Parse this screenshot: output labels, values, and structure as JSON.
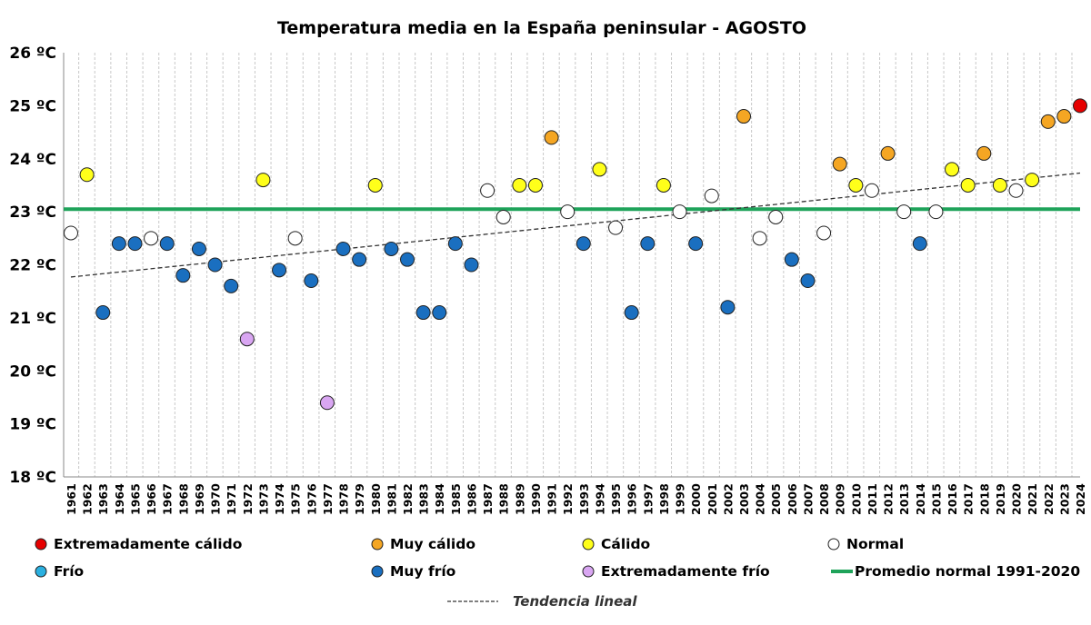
{
  "chart_data": {
    "type": "scatter",
    "title": "Temperatura media en la España peninsular - AGOSTO",
    "ylim": [
      18,
      26
    ],
    "yticks": [
      {
        "value": 18,
        "label": "18 ºC"
      },
      {
        "value": 19,
        "label": "19 ºC"
      },
      {
        "value": 20,
        "label": "20 ºC"
      },
      {
        "value": 21,
        "label": "21 ºC"
      },
      {
        "value": 22,
        "label": "22 ºC"
      },
      {
        "value": 23,
        "label": "23 ºC"
      },
      {
        "value": 24,
        "label": "24 ºC"
      },
      {
        "value": 25,
        "label": "25 ºC"
      },
      {
        "value": 26,
        "label": "26 ºC"
      }
    ],
    "grid": "vertical",
    "categories": {
      "ext_calido": {
        "label": "Extremadamente cálido",
        "color": "#e60000"
      },
      "muy_calido": {
        "label": "Muy cálido",
        "color": "#f5a623"
      },
      "calido": {
        "label": "Cálido",
        "color": "#ffff1a"
      },
      "normal": {
        "label": "Normal",
        "color": "#ffffff"
      },
      "frio": {
        "label": "Frío",
        "color": "#2ab0e0"
      },
      "muy_frio": {
        "label": "Muy frío",
        "color": "#1a6fc0"
      },
      "ext_frio": {
        "label": "Extremadamente frío",
        "color": "#d9a6f2"
      }
    },
    "points": [
      {
        "year": "1961",
        "value": 22.6,
        "cat": "normal"
      },
      {
        "year": "1962",
        "value": 23.7,
        "cat": "calido"
      },
      {
        "year": "1963",
        "value": 21.1,
        "cat": "muy_frio"
      },
      {
        "year": "1964",
        "value": 22.4,
        "cat": "muy_frio"
      },
      {
        "year": "1965",
        "value": 22.4,
        "cat": "muy_frio"
      },
      {
        "year": "1966",
        "value": 22.5,
        "cat": "normal"
      },
      {
        "year": "1967",
        "value": 22.4,
        "cat": "muy_frio"
      },
      {
        "year": "1968",
        "value": 21.8,
        "cat": "muy_frio"
      },
      {
        "year": "1969",
        "value": 22.3,
        "cat": "muy_frio"
      },
      {
        "year": "1970",
        "value": 22.0,
        "cat": "muy_frio"
      },
      {
        "year": "1971",
        "value": 21.6,
        "cat": "muy_frio"
      },
      {
        "year": "1972",
        "value": 20.6,
        "cat": "ext_frio"
      },
      {
        "year": "1973",
        "value": 23.6,
        "cat": "calido"
      },
      {
        "year": "1974",
        "value": 21.9,
        "cat": "muy_frio"
      },
      {
        "year": "1975",
        "value": 22.5,
        "cat": "normal"
      },
      {
        "year": "1976",
        "value": 21.7,
        "cat": "muy_frio"
      },
      {
        "year": "1977",
        "value": 19.4,
        "cat": "ext_frio"
      },
      {
        "year": "1978",
        "value": 22.3,
        "cat": "muy_frio"
      },
      {
        "year": "1979",
        "value": 22.1,
        "cat": "muy_frio"
      },
      {
        "year": "1980",
        "value": 23.5,
        "cat": "calido"
      },
      {
        "year": "1981",
        "value": 22.3,
        "cat": "muy_frio"
      },
      {
        "year": "1982",
        "value": 22.1,
        "cat": "muy_frio"
      },
      {
        "year": "1983",
        "value": 21.1,
        "cat": "muy_frio"
      },
      {
        "year": "1984",
        "value": 21.1,
        "cat": "muy_frio"
      },
      {
        "year": "1985",
        "value": 22.4,
        "cat": "muy_frio"
      },
      {
        "year": "1986",
        "value": 22.0,
        "cat": "muy_frio"
      },
      {
        "year": "1987",
        "value": 23.4,
        "cat": "normal"
      },
      {
        "year": "1988",
        "value": 22.9,
        "cat": "normal"
      },
      {
        "year": "1989",
        "value": 23.5,
        "cat": "calido"
      },
      {
        "year": "1990",
        "value": 23.5,
        "cat": "calido"
      },
      {
        "year": "1991",
        "value": 24.4,
        "cat": "muy_calido"
      },
      {
        "year": "1992",
        "value": 23.0,
        "cat": "normal"
      },
      {
        "year": "1993",
        "value": 22.4,
        "cat": "muy_frio"
      },
      {
        "year": "1994",
        "value": 23.8,
        "cat": "calido"
      },
      {
        "year": "1995",
        "value": 22.7,
        "cat": "normal"
      },
      {
        "year": "1996",
        "value": 21.1,
        "cat": "muy_frio"
      },
      {
        "year": "1997",
        "value": 22.4,
        "cat": "muy_frio"
      },
      {
        "year": "1998",
        "value": 23.5,
        "cat": "calido"
      },
      {
        "year": "1999",
        "value": 23.0,
        "cat": "normal"
      },
      {
        "year": "2000",
        "value": 22.4,
        "cat": "muy_frio"
      },
      {
        "year": "2001",
        "value": 23.3,
        "cat": "normal"
      },
      {
        "year": "2002",
        "value": 21.2,
        "cat": "muy_frio"
      },
      {
        "year": "2003",
        "value": 24.8,
        "cat": "muy_calido"
      },
      {
        "year": "2004",
        "value": 22.5,
        "cat": "normal"
      },
      {
        "year": "2005",
        "value": 22.9,
        "cat": "normal"
      },
      {
        "year": "2006",
        "value": 22.1,
        "cat": "muy_frio"
      },
      {
        "year": "2007",
        "value": 21.7,
        "cat": "muy_frio"
      },
      {
        "year": "2008",
        "value": 22.6,
        "cat": "normal"
      },
      {
        "year": "2009",
        "value": 23.9,
        "cat": "muy_calido"
      },
      {
        "year": "2010",
        "value": 23.5,
        "cat": "calido"
      },
      {
        "year": "2011",
        "value": 23.4,
        "cat": "normal"
      },
      {
        "year": "2012",
        "value": 24.1,
        "cat": "muy_calido"
      },
      {
        "year": "2013",
        "value": 23.0,
        "cat": "normal"
      },
      {
        "year": "2014",
        "value": 22.4,
        "cat": "muy_frio"
      },
      {
        "year": "2015",
        "value": 23.0,
        "cat": "normal"
      },
      {
        "year": "2016",
        "value": 23.8,
        "cat": "calido"
      },
      {
        "year": "2017",
        "value": 23.5,
        "cat": "calido"
      },
      {
        "year": "2018",
        "value": 24.1,
        "cat": "muy_calido"
      },
      {
        "year": "2019",
        "value": 23.5,
        "cat": "calido"
      },
      {
        "year": "2020",
        "value": 23.4,
        "cat": "normal"
      },
      {
        "year": "2021",
        "value": 23.6,
        "cat": "calido"
      },
      {
        "year": "2022",
        "value": 24.7,
        "cat": "muy_calido"
      },
      {
        "year": "2023",
        "value": 24.8,
        "cat": "muy_calido"
      },
      {
        "year": "2024",
        "value": 25.0,
        "cat": "ext_calido"
      }
    ],
    "normal_line": {
      "label": "Promedio normal 1991-2020",
      "value": 23.05,
      "color": "#1fa35a"
    },
    "trend_line": {
      "label": "Tendencia lineal",
      "start_value": 21.77,
      "end_value": 23.73,
      "color": "#333333"
    },
    "legend": {
      "placement": "bottom",
      "rows": [
        [
          "ext_calido",
          "muy_calido",
          "calido",
          "normal"
        ],
        [
          "frio",
          "muy_frio",
          "ext_frio",
          "normal_line"
        ]
      ]
    }
  }
}
